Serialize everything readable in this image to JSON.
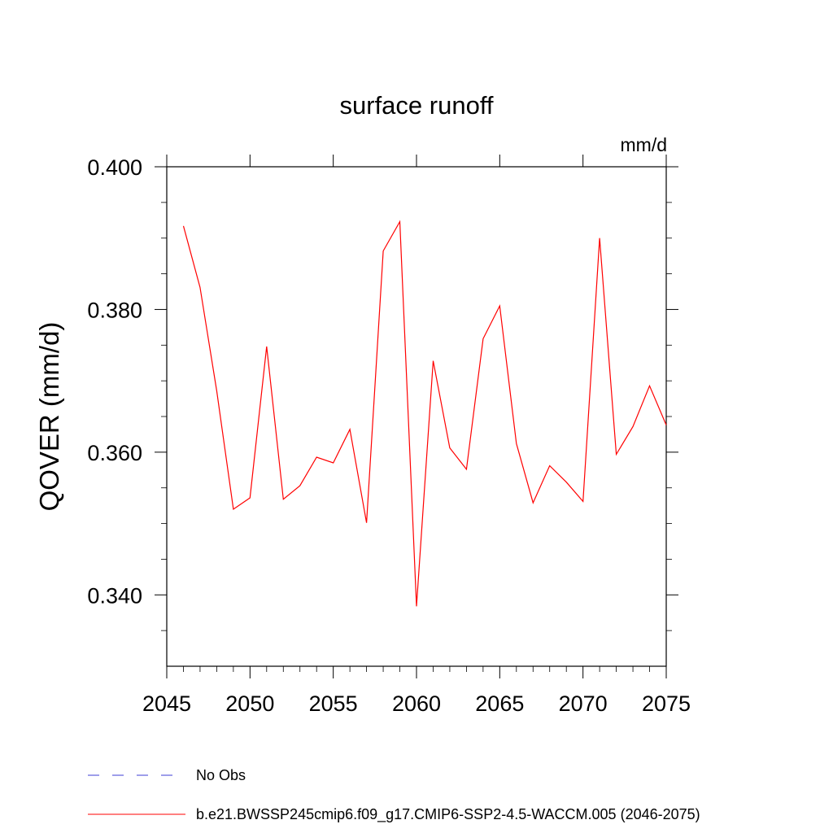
{
  "chart_data": {
    "type": "line",
    "title": "surface runoff",
    "units": "mm/d",
    "ylabel": "QOVER  (mm/d)",
    "xlabel": "",
    "xlim": [
      2045,
      2075
    ],
    "ylim": [
      0.33,
      0.4
    ],
    "x_ticks": [
      2045,
      2050,
      2055,
      2060,
      2065,
      2070,
      2075
    ],
    "y_ticks": [
      "0.340",
      "0.360",
      "0.380",
      "0.400"
    ],
    "y_tick_values": [
      0.34,
      0.36,
      0.38,
      0.4
    ],
    "grid": false,
    "legend_position": "bottom",
    "series": [
      {
        "name": "b.e21.BWSSP245cmip6.f09_g17.CMIP6-SSP2-4.5-WACCM.005 (2046-2075)",
        "color": "#ff0000",
        "style": "solid",
        "x": [
          2046,
          2047,
          2048,
          2049,
          2050,
          2051,
          2052,
          2053,
          2054,
          2055,
          2056,
          2057,
          2058,
          2059,
          2060,
          2061,
          2062,
          2063,
          2064,
          2065,
          2066,
          2067,
          2068,
          2069,
          2070,
          2071,
          2072,
          2073,
          2074,
          2075
        ],
        "y": [
          0.3917,
          0.3831,
          0.3686,
          0.352,
          0.3536,
          0.3748,
          0.3534,
          0.3553,
          0.3593,
          0.3585,
          0.3632,
          0.3501,
          0.3882,
          0.3923,
          0.3384,
          0.3728,
          0.3606,
          0.3576,
          0.3759,
          0.3805,
          0.3612,
          0.3529,
          0.3581,
          0.3558,
          0.3531,
          0.39,
          0.3597,
          0.3636,
          0.3693,
          0.3638
        ]
      }
    ],
    "legend": [
      {
        "label": "No Obs",
        "color": "#3d3dd6",
        "style": "dashed"
      },
      {
        "label": "b.e21.BWSSP245cmip6.f09_g17.CMIP6-SSP2-4.5-WACCM.005 (2046-2075)",
        "color": "#ff0000",
        "style": "solid"
      }
    ]
  }
}
